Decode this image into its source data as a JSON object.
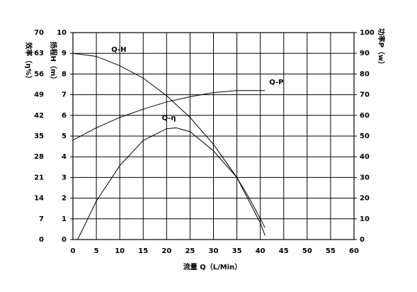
{
  "chart_data": {
    "type": "line",
    "xlabel": "流量 Q（L/Min）",
    "ylabel": "扬程H（m）",
    "y2label": "功率P（w）",
    "y3label": "效率（η%）",
    "xlim": [
      0,
      60
    ],
    "xticks": [
      0,
      5,
      10,
      15,
      20,
      25,
      30,
      35,
      40,
      45,
      50,
      55,
      60
    ],
    "ylim": [
      0,
      10
    ],
    "yticks": [
      0,
      1,
      2,
      3,
      4,
      5,
      6,
      7,
      8,
      9,
      10
    ],
    "y2lim": [
      0,
      100
    ],
    "y2ticks": [
      0,
      10,
      20,
      30,
      40,
      50,
      60,
      70,
      80,
      90,
      100
    ],
    "y3lim": [
      0,
      70
    ],
    "y3ticks": [
      0,
      7,
      14,
      21,
      28,
      35,
      42,
      49,
      56,
      63,
      70
    ],
    "grid": true,
    "series": [
      {
        "name": "Q-H",
        "color": "#000000",
        "axis": "y",
        "x": [
          0,
          5,
          10,
          15,
          20,
          25,
          30,
          35,
          40,
          41
        ],
        "values": [
          9,
          8.85,
          8.4,
          7.8,
          6.95,
          5.9,
          4.6,
          3.0,
          0.8,
          0.2
        ]
      },
      {
        "name": "Q-P",
        "color": "#000000",
        "axis": "y2",
        "x": [
          0,
          5,
          10,
          15,
          20,
          25,
          30,
          35,
          41
        ],
        "values": [
          48,
          54,
          59,
          63,
          66.5,
          69,
          71,
          72,
          72
        ]
      },
      {
        "name": "Q-η",
        "color": "#000000",
        "axis": "y3",
        "x": [
          1,
          5,
          10,
          15,
          20,
          22,
          25,
          30,
          35,
          38,
          41
        ],
        "values": [
          0,
          13,
          25,
          33.5,
          37.5,
          37.8,
          36.5,
          30,
          21,
          13,
          4
        ]
      }
    ]
  }
}
